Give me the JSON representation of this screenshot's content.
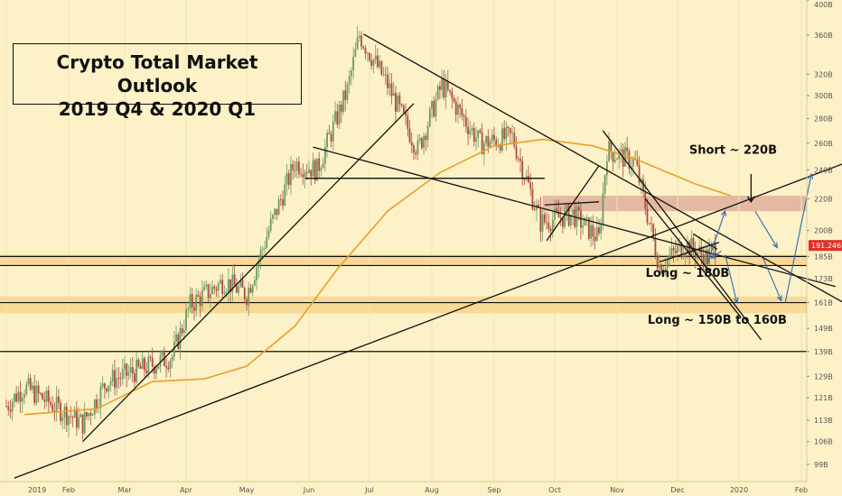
{
  "title_lines": [
    "Crypto Total Market Outlook",
    "2019 Q4 & 2020 Q1"
  ],
  "colors": {
    "background": "#fdf1c7",
    "up_candle": "#6e9a63",
    "down_candle": "#a94c43",
    "moving_average": "#e7a02b",
    "forecast_arrow": "#2f6ab3",
    "support_band": "#f7d58c",
    "resistance_band": "#d9a595",
    "last_price_tag": "#e0302b"
  },
  "chart_data": {
    "type": "candlestick",
    "x_ticks": [
      "2019",
      "Feb",
      "Mar",
      "Apr",
      "May",
      "Jun",
      "Jul",
      "Aug",
      "Sep",
      "Oct",
      "Nov",
      "Dec",
      "2020",
      "Feb"
    ],
    "y_ticks": [
      "400B",
      "360B",
      "320B",
      "300B",
      "280B",
      "260B",
      "240B",
      "220B",
      "200B",
      "185B",
      "173B",
      "161B",
      "149B",
      "139B",
      "129B",
      "121B",
      "113B",
      "106B",
      "99B"
    ],
    "y_tick_values": [
      400,
      360,
      320,
      300,
      280,
      260,
      240,
      220,
      200,
      185,
      173,
      161,
      149,
      139,
      129,
      121,
      113,
      106,
      99
    ],
    "y_scale": "log",
    "ylim": [
      94,
      400
    ],
    "last_price_label": "191.246B",
    "last_price": 191.2,
    "price_path": [
      [
        "2019-01-01",
        118
      ],
      [
        "2019-01-10",
        125
      ],
      [
        "2019-01-25",
        118
      ],
      [
        "2019-02-08",
        112
      ],
      [
        "2019-02-20",
        127
      ],
      [
        "2019-03-10",
        132
      ],
      [
        "2019-03-25",
        137
      ],
      [
        "2019-04-03",
        160
      ],
      [
        "2019-04-20",
        172
      ],
      [
        "2019-05-01",
        165
      ],
      [
        "2019-05-12",
        200
      ],
      [
        "2019-05-25",
        245
      ],
      [
        "2019-06-05",
        240
      ],
      [
        "2019-06-20",
        305
      ],
      [
        "2019-06-26",
        360
      ],
      [
        "2019-07-10",
        310
      ],
      [
        "2019-07-25",
        255
      ],
      [
        "2019-08-06",
        310
      ],
      [
        "2019-08-25",
        260
      ],
      [
        "2019-09-10",
        265
      ],
      [
        "2019-09-24",
        205
      ],
      [
        "2019-10-10",
        210
      ],
      [
        "2019-10-23",
        195
      ],
      [
        "2019-10-27",
        255
      ],
      [
        "2019-11-10",
        245
      ],
      [
        "2019-11-22",
        180
      ],
      [
        "2019-12-05",
        192
      ],
      [
        "2019-12-16",
        184
      ],
      [
        "2019-12-20",
        191
      ]
    ],
    "moving_average": [
      [
        "2019-01-10",
        115
      ],
      [
        "2019-02-15",
        117
      ],
      [
        "2019-03-15",
        127
      ],
      [
        "2019-04-10",
        128
      ],
      [
        "2019-05-01",
        133
      ],
      [
        "2019-05-25",
        150
      ],
      [
        "2019-06-15",
        178
      ],
      [
        "2019-07-10",
        212
      ],
      [
        "2019-08-05",
        238
      ],
      [
        "2019-09-01",
        258
      ],
      [
        "2019-09-25",
        263
      ],
      [
        "2019-10-20",
        258
      ],
      [
        "2019-11-10",
        248
      ],
      [
        "2019-12-10",
        230
      ],
      [
        "2019-12-28",
        222
      ]
    ],
    "horizontal_levels": [
      185,
      180,
      161,
      139
    ],
    "support_bands": [
      [
        180,
        186
      ],
      [
        156,
        164
      ]
    ],
    "resistance_band": [
      212,
      222
    ],
    "annotations": [
      {
        "text": "Short ~ 220B",
        "date": "2019-12-29",
        "value": 252
      },
      {
        "text": "Long ~ 180B",
        "date": "2019-12-06",
        "value": 174
      },
      {
        "text": "Long ~ 150B to 160B",
        "date": "2019-12-21",
        "value": 151
      }
    ]
  }
}
